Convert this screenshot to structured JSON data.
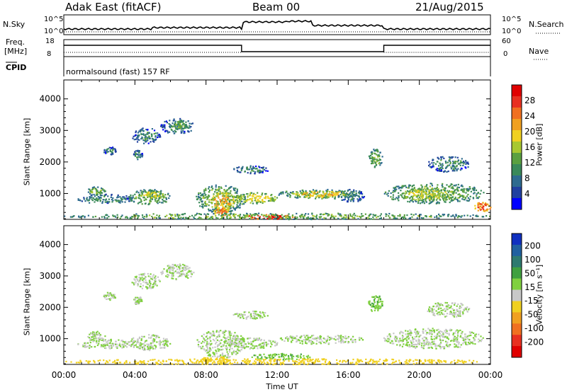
{
  "header": {
    "radar": "Adak East (fitACF)",
    "beam": "Beam 00",
    "date": "21/Aug/2015"
  },
  "top_panels": {
    "nsky_label": "N.Sky",
    "nsky_ticks": [
      "10^5",
      "10^0"
    ],
    "nsearch_label": "N.Search",
    "nsearch_ticks": [
      "10^5",
      "10^0"
    ],
    "freq_label": "Freq.",
    "freq_unit": "[MHz]",
    "freq_ticks": [
      "18",
      "8"
    ],
    "nave_label": "Nave",
    "nave_ticks": [
      "60",
      "0"
    ],
    "cpid_label": "CPID",
    "cpid_text": "normalsound (fast) 157 RF"
  },
  "axes": {
    "ylabel": "Slant Range [km]",
    "xlabel": "Time UT",
    "yticks": [
      "4000",
      "3000",
      "2000",
      "1000"
    ],
    "xticks": [
      "00:00",
      "04:00",
      "08:00",
      "12:00",
      "16:00",
      "20:00",
      "00:00"
    ]
  },
  "colorbars": {
    "power": {
      "label": "Power [dB]",
      "ticks": [
        "28",
        "24",
        "20",
        "16",
        "12",
        "8",
        "4"
      ],
      "colors": [
        "#0000ff",
        "#2040a0",
        "#2e6b8f",
        "#3a8a5a",
        "#5aa040",
        "#a8c830",
        "#f0d020",
        "#f0a020",
        "#f07020",
        "#e83020",
        "#e00000"
      ]
    },
    "velocity": {
      "label": "Velocity [m s⁻¹]",
      "ticks": [
        "200",
        "100",
        "50",
        "15",
        "-15",
        "-50",
        "-100",
        "-200"
      ],
      "colors": [
        "#1030c0",
        "#2060a0",
        "#2e7a70",
        "#40a040",
        "#80d040",
        "#c8c8c8",
        "#f0d020",
        "#f0a020",
        "#f07020",
        "#e83020",
        "#e00000"
      ]
    }
  },
  "chart_data": [
    {
      "type": "heatmap",
      "panel": "power",
      "xlabel": "Time UT",
      "ylabel": "Slant Range [km]",
      "xlim": [
        "00:00",
        "24:00"
      ],
      "ylim": [
        180,
        4600
      ],
      "colorbar": "Power [dB]",
      "regions": [
        {
          "t": [
            0.7,
            3.9
          ],
          "r": [
            700,
            1000
          ],
          "level": 8
        },
        {
          "t": [
            1.3,
            2.3
          ],
          "r": [
            950,
            1250
          ],
          "level": 12
        },
        {
          "t": [
            3.6,
            6.0
          ],
          "r": [
            650,
            1150
          ],
          "level": 12
        },
        {
          "t": [
            4.2,
            5.6
          ],
          "r": [
            850,
            1100
          ],
          "level": 16
        },
        {
          "t": [
            3.8,
            5.4
          ],
          "r": [
            2600,
            3100
          ],
          "level": 8
        },
        {
          "t": [
            5.4,
            7.3
          ],
          "r": [
            2900,
            3400
          ],
          "level": 8
        },
        {
          "t": [
            6.0,
            6.9
          ],
          "r": [
            3050,
            3350
          ],
          "level": 12
        },
        {
          "t": [
            2.2,
            2.9
          ],
          "r": [
            2250,
            2500
          ],
          "level": 8
        },
        {
          "t": [
            3.9,
            4.4
          ],
          "r": [
            2100,
            2400
          ],
          "level": 8
        },
        {
          "t": [
            7.4,
            10.2
          ],
          "r": [
            400,
            1300
          ],
          "level": 12
        },
        {
          "t": [
            8.2,
            9.6
          ],
          "r": [
            450,
            1050
          ],
          "level": 20
        },
        {
          "t": [
            8.4,
            9.2
          ],
          "r": [
            300,
            550
          ],
          "level": 24
        },
        {
          "t": [
            9.2,
            12.0
          ],
          "r": [
            700,
            1050
          ],
          "level": 16
        },
        {
          "t": [
            10.0,
            13.0
          ],
          "r": [
            200,
            350
          ],
          "level": 28
        },
        {
          "t": [
            12.0,
            16.8
          ],
          "r": [
            850,
            1150
          ],
          "level": 12
        },
        {
          "t": [
            13.0,
            16.0
          ],
          "r": [
            900,
            1100
          ],
          "level": 20
        },
        {
          "t": [
            9.5,
            11.5
          ],
          "r": [
            1650,
            1900
          ],
          "level": 8
        },
        {
          "t": [
            15.4,
            16.9
          ],
          "r": [
            750,
            1150
          ],
          "level": 8
        },
        {
          "t": [
            17.1,
            17.9
          ],
          "r": [
            1850,
            2450
          ],
          "level": 12
        },
        {
          "t": [
            17.9,
            23.6
          ],
          "r": [
            700,
            1350
          ],
          "level": 12
        },
        {
          "t": [
            19.0,
            22.0
          ],
          "r": [
            800,
            1200
          ],
          "level": 16
        },
        {
          "t": [
            20.4,
            22.8
          ],
          "r": [
            1700,
            2200
          ],
          "level": 8
        },
        {
          "t": [
            23.0,
            24.0
          ],
          "r": [
            450,
            750
          ],
          "level": 24
        },
        {
          "t": [
            0.0,
            24.0
          ],
          "r": [
            200,
            400
          ],
          "level": 12
        }
      ]
    },
    {
      "type": "heatmap",
      "panel": "velocity",
      "xlabel": "Time UT",
      "ylabel": "Slant Range [km]",
      "xlim": [
        "00:00",
        "24:00"
      ],
      "ylim": [
        180,
        4600
      ],
      "colorbar": "Velocity [m s⁻¹]",
      "regions": [
        {
          "t": [
            0.7,
            3.9
          ],
          "r": [
            700,
            1000
          ],
          "level": 0
        },
        {
          "t": [
            1.3,
            2.3
          ],
          "r": [
            950,
            1250
          ],
          "level": 0
        },
        {
          "t": [
            3.6,
            6.0
          ],
          "r": [
            650,
            1150
          ],
          "level": 0
        },
        {
          "t": [
            3.8,
            5.4
          ],
          "r": [
            2600,
            3100
          ],
          "level": 0
        },
        {
          "t": [
            5.4,
            7.3
          ],
          "r": [
            2900,
            3400
          ],
          "level": 0
        },
        {
          "t": [
            2.2,
            2.9
          ],
          "r": [
            2250,
            2500
          ],
          "level": 0
        },
        {
          "t": [
            3.9,
            4.4
          ],
          "r": [
            2100,
            2400
          ],
          "level": 0
        },
        {
          "t": [
            7.4,
            10.2
          ],
          "r": [
            400,
            1300
          ],
          "level": 0
        },
        {
          "t": [
            7.6,
            9.5
          ],
          "r": [
            250,
            450
          ],
          "level": -50
        },
        {
          "t": [
            9.2,
            12.0
          ],
          "r": [
            700,
            1050
          ],
          "level": 0
        },
        {
          "t": [
            10.5,
            14.0
          ],
          "r": [
            350,
            550
          ],
          "level": 30
        },
        {
          "t": [
            12.0,
            16.8
          ],
          "r": [
            850,
            1150
          ],
          "level": 0
        },
        {
          "t": [
            9.5,
            11.5
          ],
          "r": [
            1650,
            1900
          ],
          "level": 0
        },
        {
          "t": [
            17.1,
            17.9
          ],
          "r": [
            1850,
            2450
          ],
          "level": 30
        },
        {
          "t": [
            17.9,
            23.6
          ],
          "r": [
            700,
            1350
          ],
          "level": 0
        },
        {
          "t": [
            20.4,
            22.8
          ],
          "r": [
            1700,
            2200
          ],
          "level": 0
        },
        {
          "t": [
            0.0,
            24.0
          ],
          "r": [
            200,
            380
          ],
          "level": -50
        }
      ]
    }
  ]
}
